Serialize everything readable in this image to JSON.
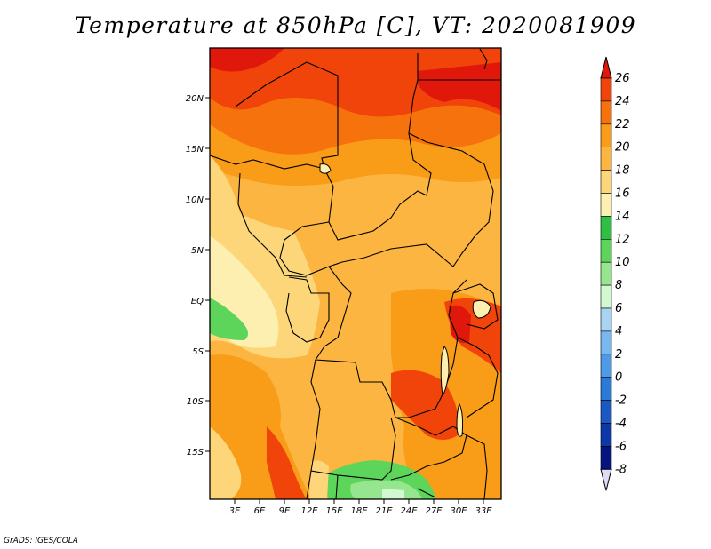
{
  "title": "Temperature at 850hPa [C], VT: 2020081909",
  "credit": "GrADS: IGES/COLA",
  "lat_labels": [
    "20N",
    "15N",
    "10N",
    "5N",
    "EQ",
    "5S",
    "10S",
    "15S"
  ],
  "lon_labels": [
    "3E",
    "6E",
    "9E",
    "12E",
    "15E",
    "18E",
    "21E",
    "24E",
    "27E",
    "30E",
    "33E"
  ],
  "colorbar": {
    "labels": [
      "26",
      "24",
      "22",
      "20",
      "18",
      "16",
      "14",
      "12",
      "10",
      "8",
      "6",
      "4",
      "2",
      "0",
      "-2",
      "-4",
      "-6",
      "-8"
    ],
    "colors": [
      "#e0180c",
      "#f0440a",
      "#f6720c",
      "#f99c18",
      "#fbb540",
      "#fdd67a",
      "#fdefb0",
      "#2ec042",
      "#5cd55a",
      "#96e690",
      "#d2f8d2",
      "#a8d4f4",
      "#78b8ee",
      "#4f9ae6",
      "#2a7ad8",
      "#1a58c4",
      "#0c38a8",
      "#061480"
    ]
  },
  "colors": {
    "water": "#fdefb0",
    "background": "#ffffff"
  }
}
